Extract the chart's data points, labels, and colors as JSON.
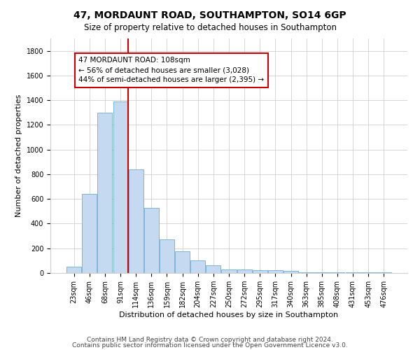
{
  "title": "47, MORDAUNT ROAD, SOUTHAMPTON, SO14 6GP",
  "subtitle": "Size of property relative to detached houses in Southampton",
  "xlabel": "Distribution of detached houses by size in Southampton",
  "ylabel": "Number of detached properties",
  "categories": [
    "23sqm",
    "46sqm",
    "68sqm",
    "91sqm",
    "114sqm",
    "136sqm",
    "159sqm",
    "182sqm",
    "204sqm",
    "227sqm",
    "250sqm",
    "272sqm",
    "295sqm",
    "317sqm",
    "340sqm",
    "363sqm",
    "385sqm",
    "408sqm",
    "431sqm",
    "453sqm",
    "476sqm"
  ],
  "values": [
    50,
    640,
    1300,
    1390,
    840,
    530,
    270,
    175,
    100,
    60,
    30,
    30,
    22,
    22,
    15,
    8,
    8,
    5,
    5,
    5,
    5
  ],
  "bar_color": "#c5d9f0",
  "bar_edge_color": "#6baed6",
  "vline_color": "#cc0000",
  "annotation_line1": "47 MORDAUNT ROAD: 108sqm",
  "annotation_line2": "← 56% of detached houses are smaller (3,028)",
  "annotation_line3": "44% of semi-detached houses are larger (2,395) →",
  "annotation_box_color": "#ffffff",
  "annotation_box_edge_color": "#cc0000",
  "footnote1": "Contains HM Land Registry data © Crown copyright and database right 2024.",
  "footnote2": "Contains public sector information licensed under the Open Government Licence v3.0.",
  "ylim": [
    0,
    1900
  ],
  "yticks": [
    0,
    200,
    400,
    600,
    800,
    1000,
    1200,
    1400,
    1600,
    1800
  ],
  "title_fontsize": 10,
  "subtitle_fontsize": 8.5,
  "xlabel_fontsize": 8,
  "ylabel_fontsize": 8,
  "tick_fontsize": 7,
  "footnote_fontsize": 6.5,
  "bg_color": "#ffffff",
  "grid_color": "#d0d0d0"
}
